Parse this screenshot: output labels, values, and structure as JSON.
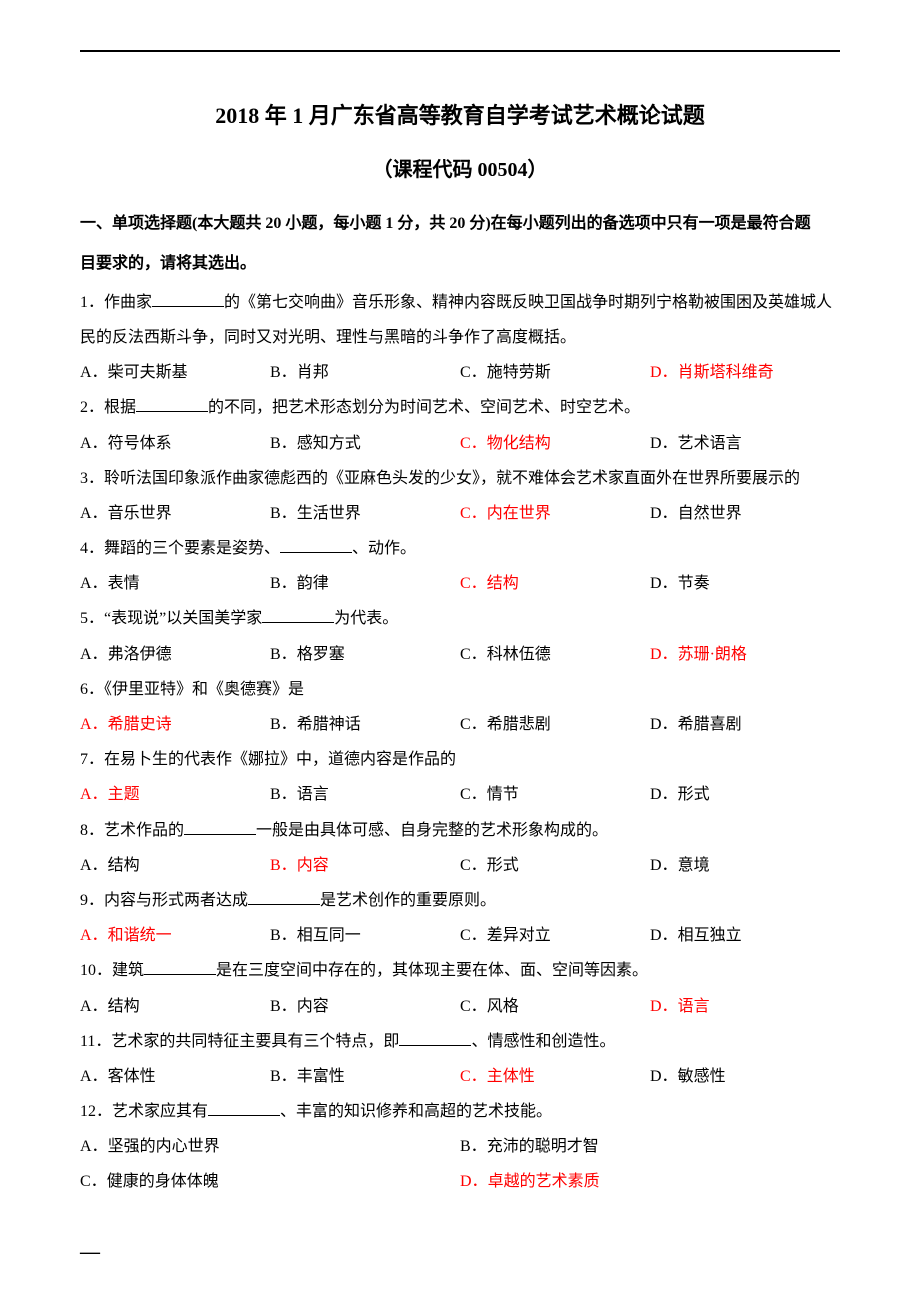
{
  "colors": {
    "text": "#000000",
    "answer": "#ff0000",
    "background": "#ffffff",
    "rule": "#000000"
  },
  "typography": {
    "body_font": "SimSun / 宋体",
    "body_size_pt": 12,
    "title_size_pt": 16,
    "subtitle_size_pt": 15,
    "line_height": 2.2
  },
  "title": "2018 年 1 月广东省高等教育自学考试艺术概论试题",
  "subtitle": "（课程代码 00504）",
  "section1_instr_line1": "一、单项选择题(本大题共 20 小题，每小题 1 分，共 20 分)在每小题列出的备选项中只有一项是最符合题",
  "section1_instr_line2": "目要求的，请将其选出。",
  "questions": [
    {
      "num": "1．",
      "stem_pre": "作曲家",
      "stem_post": "的《第七交响曲》音乐形象、精神内容既反映卫国战争时期列宁格勒被围困及英雄城人民的反法西斯斗争，同时又对光明、理性与黑暗的斗争作了高度概括。",
      "has_blank": true,
      "cols": 4,
      "opts": [
        {
          "k": "A．",
          "t": "柴可夫斯基",
          "a": false
        },
        {
          "k": "B．",
          "t": "肖邦",
          "a": false
        },
        {
          "k": "C．",
          "t": "施特劳斯",
          "a": false
        },
        {
          "k": "D．",
          "t": "肖斯塔科维奇",
          "a": true
        }
      ]
    },
    {
      "num": "2．",
      "stem_pre": "根据",
      "stem_post": "的不同，把艺术形态划分为时间艺术、空间艺术、时空艺术。",
      "has_blank": true,
      "cols": 4,
      "opts": [
        {
          "k": "A．",
          "t": "符号体系",
          "a": false
        },
        {
          "k": "B．",
          "t": "感知方式",
          "a": false
        },
        {
          "k": "C．",
          "t": "物化结构",
          "a": true
        },
        {
          "k": "D．",
          "t": "艺术语言",
          "a": false
        }
      ]
    },
    {
      "num": "3．",
      "stem_pre": "聆听法国印象派作曲家德彪西的《亚麻色头发的少女》，就不难体会艺术家直面外在世界所要展示的",
      "stem_post": "",
      "has_blank": false,
      "cols": 4,
      "opts": [
        {
          "k": "A．",
          "t": "音乐世界",
          "a": false
        },
        {
          "k": "B．",
          "t": "生活世界",
          "a": false
        },
        {
          "k": "C．",
          "t": "内在世界",
          "a": true
        },
        {
          "k": "D．",
          "t": "自然世界",
          "a": false
        }
      ]
    },
    {
      "num": "4．",
      "stem_pre": "舞蹈的三个要素是姿势、",
      "stem_post": "、动作。",
      "has_blank": true,
      "cols": 4,
      "opts": [
        {
          "k": "A．",
          "t": "表情",
          "a": false
        },
        {
          "k": "B．",
          "t": "韵律",
          "a": false
        },
        {
          "k": "C．",
          "t": "结构",
          "a": true
        },
        {
          "k": "D．",
          "t": "节奏",
          "a": false
        }
      ]
    },
    {
      "num": "5．",
      "stem_pre": "“表现说”以关国美学家",
      "stem_post": "为代表。",
      "has_blank": true,
      "cols": 4,
      "opts": [
        {
          "k": "A．",
          "t": "弗洛伊德",
          "a": false
        },
        {
          "k": "B．",
          "t": "格罗塞",
          "a": false
        },
        {
          "k": "C．",
          "t": "科林伍德",
          "a": false
        },
        {
          "k": "D．",
          "t": "苏珊·朗格",
          "a": true
        }
      ]
    },
    {
      "num": "6．",
      "stem_pre": "《伊里亚特》和《奥德赛》是",
      "stem_post": "",
      "has_blank": false,
      "cols": 4,
      "opts": [
        {
          "k": "A．",
          "t": "希腊史诗",
          "a": true
        },
        {
          "k": "B．",
          "t": "希腊神话",
          "a": false
        },
        {
          "k": "C．",
          "t": "希腊悲剧",
          "a": false
        },
        {
          "k": "D．",
          "t": "希腊喜剧",
          "a": false
        }
      ]
    },
    {
      "num": "7．",
      "stem_pre": "在易卜生的代表作《娜拉》中，道德内容是作品的",
      "stem_post": "",
      "has_blank": false,
      "cols": 4,
      "opts": [
        {
          "k": "A．",
          "t": "主题",
          "a": true
        },
        {
          "k": "B．",
          "t": "语言",
          "a": false
        },
        {
          "k": "C．",
          "t": "情节",
          "a": false
        },
        {
          "k": "D．",
          "t": "形式",
          "a": false
        }
      ]
    },
    {
      "num": "8．",
      "stem_pre": "艺术作品的",
      "stem_post": "一般是由具体可感、自身完整的艺术形象构成的。",
      "has_blank": true,
      "cols": 4,
      "opts": [
        {
          "k": "A．",
          "t": "结构",
          "a": false
        },
        {
          "k": "B．",
          "t": "内容",
          "a": true
        },
        {
          "k": "C．",
          "t": "形式",
          "a": false
        },
        {
          "k": "D．",
          "t": "意境",
          "a": false
        }
      ]
    },
    {
      "num": "9．",
      "stem_pre": "内容与形式两者达成",
      "stem_post": "是艺术创作的重要原则。",
      "has_blank": true,
      "cols": 4,
      "opts": [
        {
          "k": "A．",
          "t": "和谐统一",
          "a": true
        },
        {
          "k": "B．",
          "t": "相互同一",
          "a": false
        },
        {
          "k": "C．",
          "t": "差异对立",
          "a": false
        },
        {
          "k": "D．",
          "t": "相互独立",
          "a": false
        }
      ]
    },
    {
      "num": "10．",
      "stem_pre": "建筑",
      "stem_post": "是在三度空间中存在的，其体现主要在体、面、空间等因素。",
      "has_blank": true,
      "cols": 4,
      "opts": [
        {
          "k": "A．",
          "t": "结构",
          "a": false
        },
        {
          "k": "B．",
          "t": "内容",
          "a": false
        },
        {
          "k": "C．",
          "t": "风格",
          "a": false
        },
        {
          "k": "D．",
          "t": "语言",
          "a": true
        }
      ]
    },
    {
      "num": "11．",
      "stem_pre": "艺术家的共同特征主要具有三个特点，即",
      "stem_post": "、情感性和创造性。",
      "has_blank": true,
      "cols": 4,
      "opts": [
        {
          "k": "A．",
          "t": "客体性",
          "a": false
        },
        {
          "k": "B．",
          "t": "丰富性",
          "a": false
        },
        {
          "k": "C．",
          "t": "主体性",
          "a": true
        },
        {
          "k": "D．",
          "t": "敏感性",
          "a": false
        }
      ]
    },
    {
      "num": "12．",
      "stem_pre": "艺术家应其有",
      "stem_post": "、丰富的知识修养和高超的艺术技能。",
      "has_blank": true,
      "cols": 2,
      "opts": [
        {
          "k": "A．",
          "t": "坚强的内心世界",
          "a": false
        },
        {
          "k": "B．",
          "t": "充沛的聪明才智",
          "a": false
        },
        {
          "k": "C．",
          "t": "健康的身体体魄",
          "a": false
        },
        {
          "k": "D．",
          "t": "卓越的艺术素质",
          "a": true
        }
      ]
    }
  ],
  "footer_mark": "—"
}
